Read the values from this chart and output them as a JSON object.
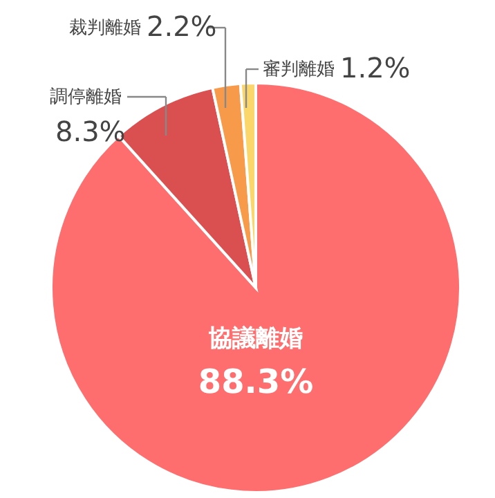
{
  "chart_data": {
    "type": "pie",
    "categories": [
      "協議離婚",
      "調停離婚",
      "裁判離婚",
      "審判離婚"
    ],
    "values": [
      88.3,
      8.3,
      2.2,
      1.2
    ],
    "colors": [
      "#fe6e6e",
      "#da4f4f",
      "#f79b4b",
      "#fbd66a"
    ],
    "value_labels": [
      "88.3%",
      "8.3%",
      "2.2%",
      "1.2%"
    ]
  }
}
